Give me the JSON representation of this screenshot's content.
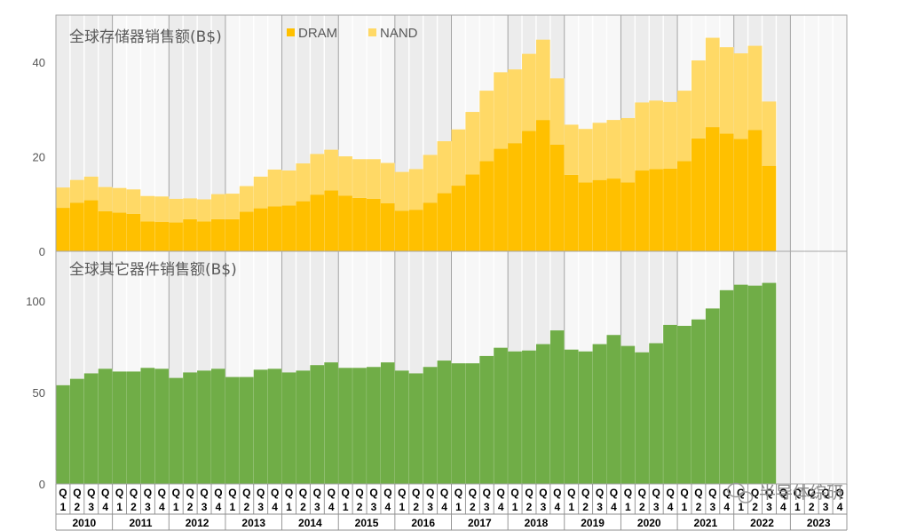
{
  "watermark": "半导体综研",
  "chart_data": [
    {
      "type": "bar",
      "stacked": true,
      "title": "全球存储器销售额(B$)",
      "ylim": [
        0,
        50
      ],
      "yticks": [
        "0",
        "20",
        "40"
      ],
      "ytick_values": [
        0,
        20,
        40
      ],
      "legend": "top",
      "series": [
        {
          "name": "DRAM",
          "color": "#FFC000",
          "values": [
            9.2,
            10.3,
            10.8,
            8.5,
            8.2,
            7.9,
            6.3,
            6.2,
            6.1,
            6.8,
            6.3,
            6.8,
            6.8,
            8.4,
            9.1,
            9.5,
            9.7,
            10.6,
            12,
            12.9,
            11.8,
            11.3,
            11.1,
            10.2,
            8.6,
            8.8,
            10.3,
            12.3,
            13.9,
            16.3,
            19.1,
            21.7,
            22.9,
            25.5,
            27.8,
            22.6,
            16.2,
            14.6,
            15.1,
            15.4,
            14.6,
            17.1,
            17.4,
            17.5,
            19.1,
            23.9,
            26.3,
            24.9,
            23.8,
            25.7,
            18.1
          ]
        },
        {
          "name": "NAND",
          "color": "#FFD966",
          "values": [
            4.3,
            4.8,
            5.0,
            5.1,
            5.2,
            5.2,
            5.4,
            5.4,
            5.0,
            4.4,
            4.7,
            5.3,
            5.4,
            5.4,
            6.7,
            7.8,
            7.4,
            8.0,
            8.6,
            8.6,
            8.3,
            8.2,
            8.4,
            8.5,
            8.2,
            8.6,
            10.1,
            11.0,
            11.9,
            13.2,
            14.9,
            16.2,
            15.6,
            16.3,
            17.0,
            14.0,
            10.6,
            11.3,
            12.1,
            12.4,
            13.6,
            14.4,
            14.5,
            14.1,
            14.9,
            16.5,
            18.9,
            18.3,
            18.1,
            17.8,
            13.6
          ]
        }
      ]
    },
    {
      "type": "bar",
      "title": "全球其它器件销售额(B$)",
      "ylim": [
        0,
        120
      ],
      "yticks": [
        "0",
        "50",
        "100"
      ],
      "ytick_values": [
        0,
        50,
        100
      ],
      "series": [
        {
          "name": "其它器件",
          "color": "#70AD47",
          "values": [
            54,
            57.5,
            60.5,
            63,
            61.5,
            61.5,
            63.5,
            63,
            58,
            61,
            62,
            63,
            58.5,
            58.5,
            62.5,
            63,
            61,
            62,
            65,
            66.5,
            63.5,
            63.5,
            64,
            66.5,
            62,
            60.5,
            64,
            67.5,
            66,
            66,
            70,
            74.5,
            72.5,
            73,
            76.5,
            84,
            73.5,
            72.5,
            76.5,
            81.5,
            75.5,
            72,
            77,
            87,
            86.5,
            90,
            96,
            106,
            109,
            108.5,
            110
          ]
        }
      ]
    }
  ],
  "x_axis": {
    "quarter_prefix": "Q",
    "quarters": [
      "1",
      "2",
      "3",
      "4"
    ],
    "years": [
      "2010",
      "2011",
      "2012",
      "2013",
      "2014",
      "2015",
      "2016",
      "2017",
      "2018",
      "2019",
      "2020",
      "2021",
      "2022",
      "2023"
    ]
  }
}
